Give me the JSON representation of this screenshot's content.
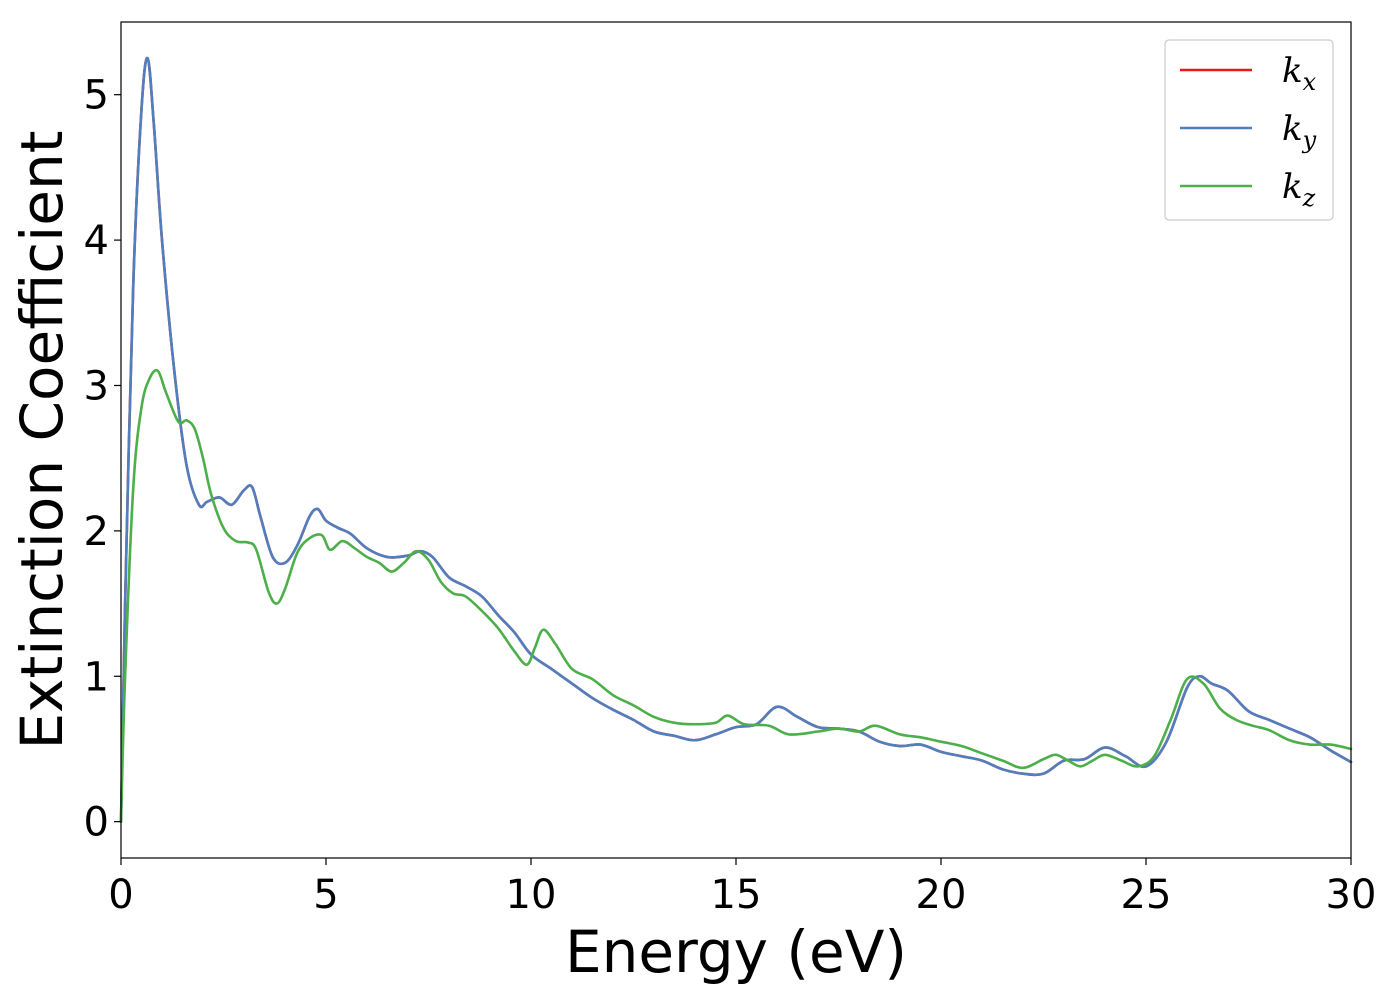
{
  "chart_data": {
    "type": "line",
    "title": "",
    "xlabel": "Energy (eV)",
    "ylabel": "Extinction Coefficient",
    "xlim": [
      0,
      30
    ],
    "ylim": [
      -0.25,
      5.5
    ],
    "xticks": [
      0,
      5,
      10,
      15,
      20,
      25,
      30
    ],
    "yticks": [
      0,
      1,
      2,
      3,
      4,
      5
    ],
    "grid": false,
    "legend_position": "top-right",
    "series": [
      {
        "name": "k_x",
        "label_base": "k",
        "label_sub": "x",
        "color": "#e41a1c",
        "x": [
          0,
          0.1,
          0.3,
          0.5,
          0.65,
          0.8,
          1.0,
          1.3,
          1.6,
          1.9,
          2.1,
          2.4,
          2.7,
          3.0,
          3.2,
          3.4,
          3.7,
          4.0,
          4.3,
          4.6,
          4.8,
          5.0,
          5.3,
          5.6,
          6.0,
          6.5,
          7.0,
          7.3,
          7.6,
          8.0,
          8.4,
          8.8,
          9.2,
          9.6,
          10.0,
          10.5,
          11.0,
          11.5,
          12.0,
          12.5,
          13.0,
          13.5,
          14.0,
          14.5,
          15.0,
          15.5,
          16.0,
          16.5,
          17.0,
          17.5,
          18.0,
          18.5,
          19.0,
          19.5,
          20.0,
          20.5,
          21.0,
          21.5,
          22.0,
          22.5,
          23.0,
          23.5,
          24.0,
          24.5,
          25.0,
          25.5,
          26.0,
          26.3,
          26.6,
          27.0,
          27.5,
          28.0,
          28.5,
          29.0,
          29.5,
          30.0
        ],
        "y": [
          0,
          1.5,
          3.7,
          4.9,
          5.25,
          4.8,
          4.0,
          3.1,
          2.45,
          2.18,
          2.2,
          2.23,
          2.18,
          2.28,
          2.3,
          2.1,
          1.82,
          1.78,
          1.9,
          2.1,
          2.15,
          2.07,
          2.02,
          1.98,
          1.88,
          1.82,
          1.83,
          1.86,
          1.82,
          1.68,
          1.62,
          1.55,
          1.42,
          1.3,
          1.15,
          1.05,
          0.95,
          0.85,
          0.77,
          0.7,
          0.62,
          0.59,
          0.56,
          0.6,
          0.65,
          0.67,
          0.79,
          0.72,
          0.65,
          0.64,
          0.62,
          0.55,
          0.52,
          0.53,
          0.48,
          0.45,
          0.42,
          0.36,
          0.33,
          0.33,
          0.42,
          0.43,
          0.51,
          0.45,
          0.38,
          0.55,
          0.92,
          1.0,
          0.95,
          0.9,
          0.76,
          0.7,
          0.64,
          0.58,
          0.49,
          0.41
        ]
      },
      {
        "name": "k_y",
        "label_base": "k",
        "label_sub": "y",
        "color": "#4f7fbf",
        "x": [
          0,
          0.1,
          0.3,
          0.5,
          0.65,
          0.8,
          1.0,
          1.3,
          1.6,
          1.9,
          2.1,
          2.4,
          2.7,
          3.0,
          3.2,
          3.4,
          3.7,
          4.0,
          4.3,
          4.6,
          4.8,
          5.0,
          5.3,
          5.6,
          6.0,
          6.5,
          7.0,
          7.3,
          7.6,
          8.0,
          8.4,
          8.8,
          9.2,
          9.6,
          10.0,
          10.5,
          11.0,
          11.5,
          12.0,
          12.5,
          13.0,
          13.5,
          14.0,
          14.5,
          15.0,
          15.5,
          16.0,
          16.5,
          17.0,
          17.5,
          18.0,
          18.5,
          19.0,
          19.5,
          20.0,
          20.5,
          21.0,
          21.5,
          22.0,
          22.5,
          23.0,
          23.5,
          24.0,
          24.5,
          25.0,
          25.5,
          26.0,
          26.3,
          26.6,
          27.0,
          27.5,
          28.0,
          28.5,
          29.0,
          29.5,
          30.0
        ],
        "y": [
          0,
          1.5,
          3.7,
          4.9,
          5.25,
          4.8,
          4.0,
          3.1,
          2.45,
          2.18,
          2.2,
          2.23,
          2.18,
          2.28,
          2.3,
          2.1,
          1.82,
          1.78,
          1.9,
          2.1,
          2.15,
          2.07,
          2.02,
          1.98,
          1.88,
          1.82,
          1.83,
          1.86,
          1.82,
          1.68,
          1.62,
          1.55,
          1.42,
          1.3,
          1.15,
          1.05,
          0.95,
          0.85,
          0.77,
          0.7,
          0.62,
          0.59,
          0.56,
          0.6,
          0.65,
          0.67,
          0.79,
          0.72,
          0.65,
          0.64,
          0.62,
          0.55,
          0.52,
          0.53,
          0.48,
          0.45,
          0.42,
          0.36,
          0.33,
          0.33,
          0.42,
          0.43,
          0.51,
          0.45,
          0.38,
          0.55,
          0.92,
          1.0,
          0.95,
          0.9,
          0.76,
          0.7,
          0.64,
          0.58,
          0.49,
          0.41
        ]
      },
      {
        "name": "k_z",
        "label_base": "k",
        "label_sub": "z",
        "color": "#4daf4a",
        "x": [
          0,
          0.1,
          0.3,
          0.5,
          0.7,
          0.9,
          1.1,
          1.4,
          1.6,
          1.8,
          2.0,
          2.2,
          2.5,
          2.8,
          3.1,
          3.3,
          3.6,
          3.8,
          4.0,
          4.3,
          4.6,
          4.9,
          5.1,
          5.4,
          5.7,
          6.0,
          6.3,
          6.6,
          6.9,
          7.2,
          7.5,
          7.8,
          8.1,
          8.4,
          8.8,
          9.2,
          9.6,
          9.9,
          10.1,
          10.3,
          10.6,
          11.0,
          11.5,
          12.0,
          12.5,
          13.0,
          13.5,
          14.0,
          14.5,
          14.8,
          15.2,
          15.8,
          16.3,
          17.0,
          17.5,
          18.0,
          18.4,
          19.0,
          19.5,
          20.0,
          20.5,
          21.0,
          21.5,
          22.0,
          22.5,
          22.8,
          23.1,
          23.4,
          23.7,
          24.0,
          24.4,
          24.8,
          25.2,
          25.6,
          26.0,
          26.4,
          26.8,
          27.2,
          27.6,
          28.0,
          28.5,
          29.0,
          29.5,
          30.0
        ],
        "y": [
          0,
          1.0,
          2.3,
          2.85,
          3.05,
          3.1,
          2.95,
          2.75,
          2.76,
          2.7,
          2.5,
          2.25,
          2.02,
          1.93,
          1.92,
          1.87,
          1.58,
          1.5,
          1.6,
          1.85,
          1.95,
          1.97,
          1.87,
          1.93,
          1.88,
          1.82,
          1.78,
          1.72,
          1.78,
          1.86,
          1.8,
          1.65,
          1.57,
          1.55,
          1.45,
          1.33,
          1.17,
          1.08,
          1.2,
          1.32,
          1.22,
          1.05,
          0.98,
          0.87,
          0.8,
          0.72,
          0.68,
          0.67,
          0.68,
          0.73,
          0.67,
          0.66,
          0.6,
          0.62,
          0.64,
          0.62,
          0.66,
          0.6,
          0.58,
          0.55,
          0.52,
          0.47,
          0.42,
          0.37,
          0.43,
          0.46,
          0.42,
          0.38,
          0.42,
          0.46,
          0.42,
          0.38,
          0.45,
          0.7,
          0.98,
          0.95,
          0.78,
          0.7,
          0.66,
          0.63,
          0.56,
          0.53,
          0.53,
          0.5
        ]
      }
    ]
  }
}
